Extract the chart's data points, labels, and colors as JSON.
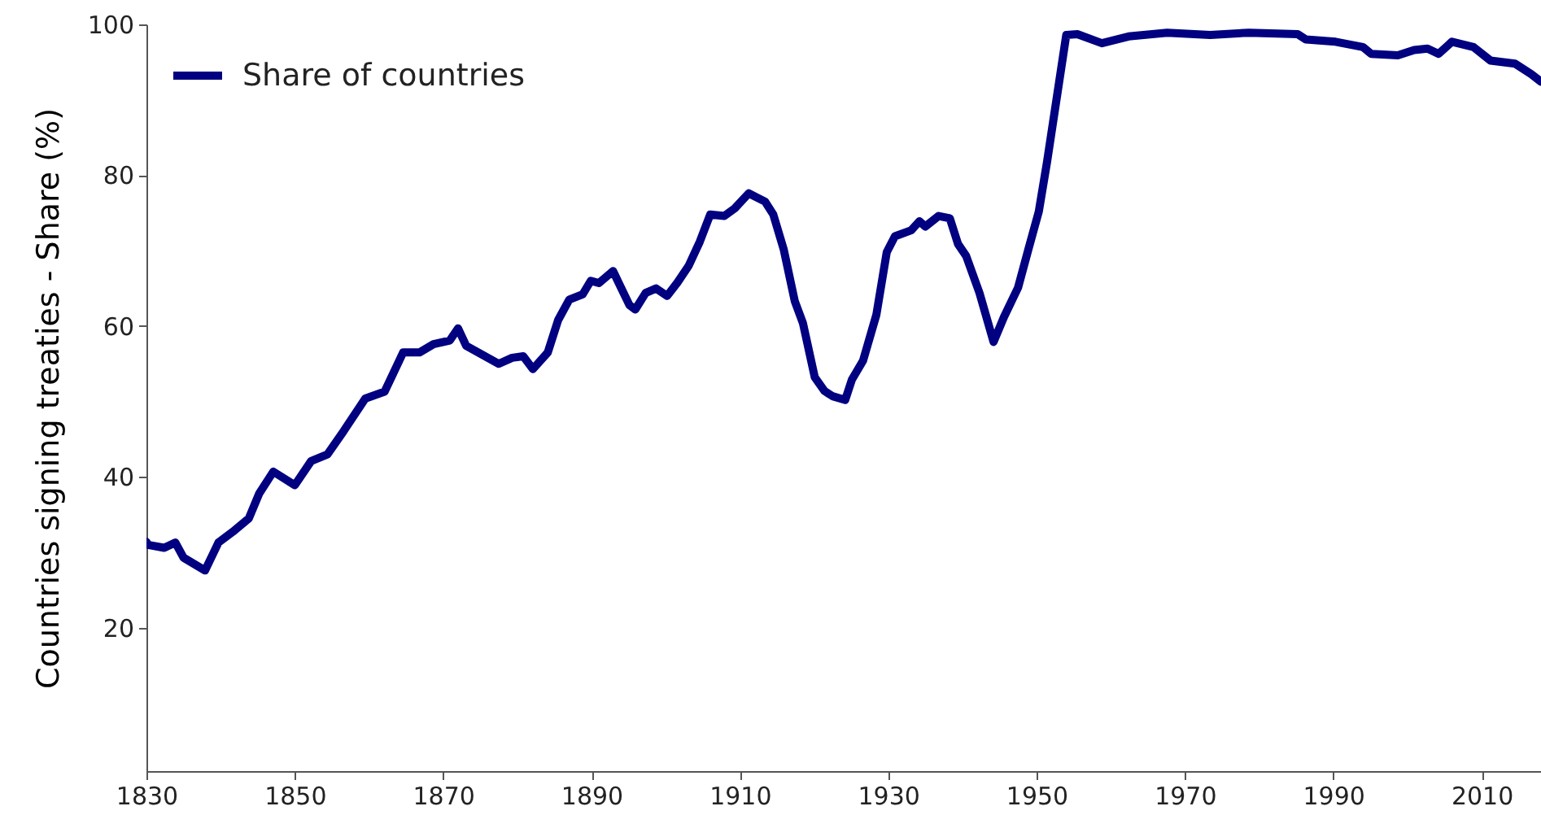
{
  "chart_data": {
    "type": "line",
    "ylabel": "Countries signing treaties - Share (%)",
    "x": [
      1830,
      1830.2,
      1832.4,
      1833.9,
      1835,
      1837.9,
      1839.7,
      1841.6,
      1843.8,
      1845.2,
      1847.1,
      1850,
      1852.2,
      1854.4,
      1856.6,
      1859.5,
      1862.1,
      1864.6,
      1866.8,
      1868.7,
      1870.9,
      1872,
      1873.1,
      1877.5,
      1879.3,
      1880.8,
      1882.1,
      1884.1,
      1885.5,
      1887,
      1888.8,
      1889.9,
      1891,
      1892.9,
      1895.1,
      1895.9,
      1897.3,
      1898.7,
      1900.2,
      1901.6,
      1903.1,
      1904.6,
      1906,
      1907.9,
      1909.3,
      1911.2,
      1913.4,
      1914.5,
      1915.9,
      1917.4,
      1918.5,
      1920.1,
      1921.4,
      1922.5,
      1924.2,
      1925.1,
      1926.6,
      1928.4,
      1929.8,
      1930.9,
      1933.1,
      1934.2,
      1935,
      1936.8,
      1938.3,
      1939.4,
      1940.5,
      1942.3,
      1944.2,
      1945.6,
      1947.5,
      1948.9,
      1950.3,
      1951.4,
      1954,
      1955.5,
      1958.8,
      1962.4,
      1967.6,
      1973.4,
      1978.6,
      1985.2,
      1986.3,
      1990.3,
      1994,
      1995.1,
      1998.7,
      2000.9,
      2002.7,
      2004.2,
      2006,
      2008.9,
      2011.2,
      2014.5,
      2015.6,
      2016.7,
      2018
    ],
    "series": [
      {
        "name": "Share of countries",
        "color": "#000080",
        "values": [
          31.4,
          31.0,
          30.6,
          31.3,
          29.3,
          27.6,
          31.3,
          32.7,
          34.5,
          37.8,
          40.7,
          38.9,
          42.1,
          43.0,
          46.1,
          50.4,
          51.3,
          56.5,
          56.5,
          57.6,
          58.1,
          59.7,
          57.4,
          55.0,
          55.8,
          56.0,
          54.3,
          56.5,
          60.8,
          63.5,
          64.2,
          66.0,
          65.7,
          67.3,
          62.8,
          62.2,
          64.4,
          65.0,
          64.0,
          65.8,
          68.0,
          71.2,
          74.8,
          74.6,
          75.6,
          77.6,
          76.5,
          74.8,
          70.2,
          63.3,
          60.4,
          53.2,
          51.4,
          50.7,
          50.2,
          52.9,
          55.4,
          61.5,
          69.8,
          71.9,
          72.7,
          73.9,
          73.2,
          74.6,
          74.3,
          70.9,
          69.3,
          64.4,
          57.9,
          61.2,
          65.1,
          70.2,
          75.2,
          81.7,
          98.6,
          98.7,
          97.5,
          98.4,
          98.9,
          98.6,
          98.9,
          98.7,
          98.0,
          97.7,
          97.0,
          96.1,
          95.9,
          96.6,
          96.8,
          96.1,
          97.7,
          97.0,
          95.2,
          94.8,
          94.1,
          93.4,
          92.4
        ]
      }
    ],
    "xlim": [
      1830,
      2018
    ],
    "ylim": [
      1,
      100
    ],
    "xticks": [
      1830,
      1850,
      1870,
      1890,
      1910,
      1930,
      1950,
      1970,
      1990,
      2010
    ],
    "yticks": [
      20,
      40,
      60,
      80,
      100
    ],
    "legend": "top left",
    "grid": false,
    "marker": "none",
    "line_style": "solid"
  }
}
